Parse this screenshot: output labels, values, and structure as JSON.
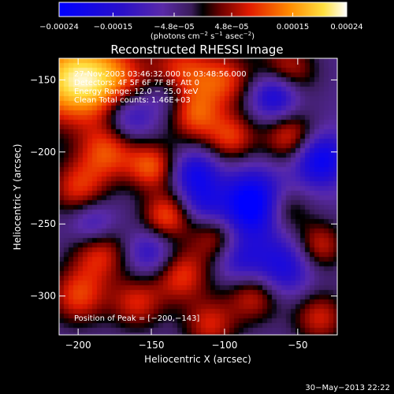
{
  "chart_data": {
    "type": "heatmap",
    "title": "Reconstructed RHESSI Image",
    "xlabel": "Heliocentric X (arcsec)",
    "ylabel": "Heliocentric Y (arcsec)",
    "xlim": [
      -213,
      -23
    ],
    "ylim": [
      -327,
      -135
    ],
    "x_ticks": [
      {
        "value": -200,
        "label": "−200"
      },
      {
        "value": -150,
        "label": "−150"
      },
      {
        "value": -100,
        "label": "−100"
      },
      {
        "value": -50,
        "label": "−50"
      }
    ],
    "y_ticks": [
      {
        "value": -150,
        "label": "−150"
      },
      {
        "value": -200,
        "label": "−200"
      },
      {
        "value": -250,
        "label": "−250"
      },
      {
        "value": -300,
        "label": "−300"
      }
    ],
    "colorbar": {
      "range": [
        -0.00024,
        0.00024
      ],
      "ticks": [
        {
          "value": -0.00024,
          "label": "−0.00024"
        },
        {
          "value": -0.00015,
          "label": "−0.00015"
        },
        {
          "value": -4.8e-05,
          "label": "−4.8e−05"
        },
        {
          "value": 4.8e-05,
          "label": "4.8e−05"
        },
        {
          "value": 0.00015,
          "label": "0.00015"
        },
        {
          "value": 0.00024,
          "label": "0.00024"
        }
      ],
      "unit_label": {
        "prefix": "(photons cm",
        "sup1": "−2",
        "mid": " s",
        "sup2": "−1",
        "mid2": " asec",
        "sup3": "−2",
        "suffix": ")"
      }
    },
    "annotations": [
      "27-Nov-2003 03:46:32.000 to 03:48:56.000",
      "Detectors: 4F 5F 6F 7F 8F, Att 0",
      "Energy Range: 12.0 − 25.0 keV",
      "Clean     Total counts: 1.46E+03"
    ],
    "peak_label": "Position of Peak = [−200,−143]",
    "peak": {
      "x": -200,
      "y": -143
    },
    "blobs": [
      {
        "x": -205,
        "y": -150,
        "v": 0.00024,
        "s": 22
      },
      {
        "x": -175,
        "y": -150,
        "v": 0.00012,
        "s": 18
      },
      {
        "x": -130,
        "y": -145,
        "v": 0.00014,
        "s": 15
      },
      {
        "x": -100,
        "y": -150,
        "v": 0.00013,
        "s": 14
      },
      {
        "x": -58,
        "y": -145,
        "v": 0.00014,
        "s": 14
      },
      {
        "x": -120,
        "y": -175,
        "v": 0.00014,
        "s": 13
      },
      {
        "x": -95,
        "y": -190,
        "v": 0.00013,
        "s": 12
      },
      {
        "x": -55,
        "y": -190,
        "v": 0.00014,
        "s": 13
      },
      {
        "x": -180,
        "y": -200,
        "v": 0.00014,
        "s": 14
      },
      {
        "x": -150,
        "y": -210,
        "v": 0.00015,
        "s": 12
      },
      {
        "x": -200,
        "y": -225,
        "v": 0.00013,
        "s": 14
      },
      {
        "x": -140,
        "y": -245,
        "v": 0.00015,
        "s": 12
      },
      {
        "x": -105,
        "y": -260,
        "v": 0.00011,
        "s": 12
      },
      {
        "x": -60,
        "y": -240,
        "v": 0.00012,
        "s": 12
      },
      {
        "x": -35,
        "y": -265,
        "v": 0.00012,
        "s": 12
      },
      {
        "x": -185,
        "y": -270,
        "v": 0.00013,
        "s": 14
      },
      {
        "x": -200,
        "y": -300,
        "v": 0.00014,
        "s": 14
      },
      {
        "x": -130,
        "y": -285,
        "v": 0.00014,
        "s": 14
      },
      {
        "x": -160,
        "y": -305,
        "v": 0.00012,
        "s": 13
      },
      {
        "x": -80,
        "y": -300,
        "v": 0.00012,
        "s": 13
      },
      {
        "x": -110,
        "y": -320,
        "v": 0.00012,
        "s": 13
      },
      {
        "x": -35,
        "y": -315,
        "v": 0.00012,
        "s": 13
      },
      {
        "x": -65,
        "y": -160,
        "v": -0.00018,
        "s": 12
      },
      {
        "x": -35,
        "y": -205,
        "v": -0.00018,
        "s": 13
      },
      {
        "x": -80,
        "y": -237,
        "v": -0.00024,
        "s": 16
      },
      {
        "x": -120,
        "y": -215,
        "v": -0.00014,
        "s": 11
      },
      {
        "x": -165,
        "y": -175,
        "v": -0.00012,
        "s": 12
      },
      {
        "x": -150,
        "y": -270,
        "v": -0.00011,
        "s": 12
      },
      {
        "x": -60,
        "y": -280,
        "v": -0.00013,
        "s": 14
      },
      {
        "x": -115,
        "y": -235,
        "v": -9e-05,
        "s": 10
      },
      {
        "x": -90,
        "y": -275,
        "v": -0.0001,
        "s": 12
      },
      {
        "x": -190,
        "y": -250,
        "v": -0.0001,
        "s": 11
      },
      {
        "x": -140,
        "y": -160,
        "v": -8e-05,
        "s": 11
      }
    ]
  },
  "timestamp": "30−May−2013 22:22"
}
